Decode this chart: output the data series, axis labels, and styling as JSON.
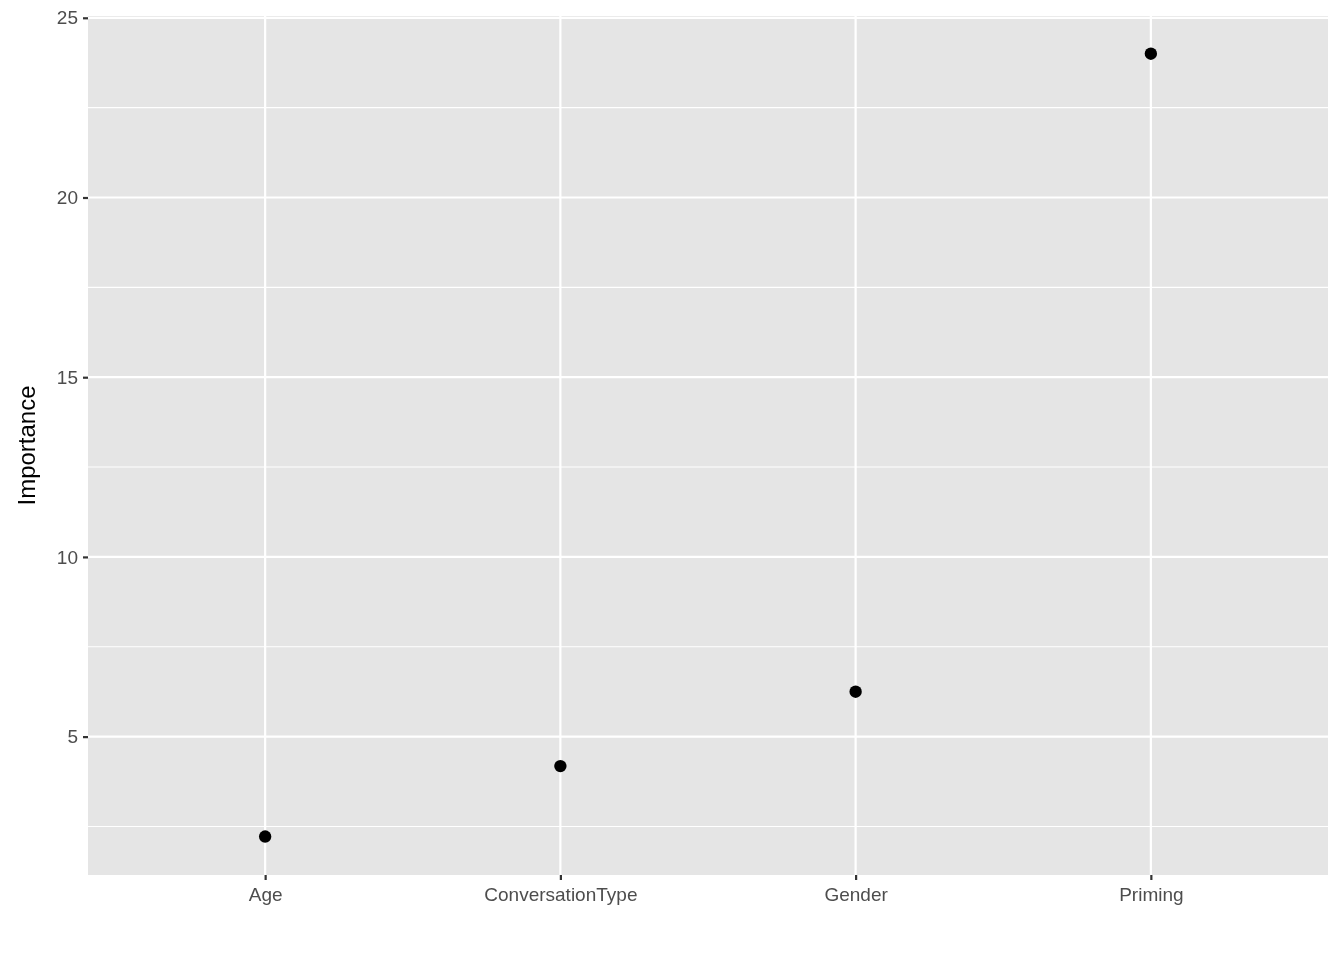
{
  "chart_data": {
    "type": "scatter",
    "ylabel": "Importance",
    "categories": [
      "Age",
      "ConversationType",
      "Gender",
      "Priming"
    ],
    "series": [
      {
        "color": "#000000",
        "values": [
          2.22,
          4.18,
          6.25,
          24.0
        ]
      }
    ],
    "ylim": [
      1.15,
      25.05
    ],
    "yticks": [
      {
        "value": 2.5,
        "label": null
      },
      5,
      {
        "value": 7.5,
        "label": null
      },
      10,
      {
        "value": 12.5,
        "label": null
      },
      15,
      {
        "value": 17.5,
        "label": null
      },
      20,
      {
        "value": 22.5,
        "label": null
      },
      25
    ],
    "grid": true,
    "marker": "circle"
  }
}
